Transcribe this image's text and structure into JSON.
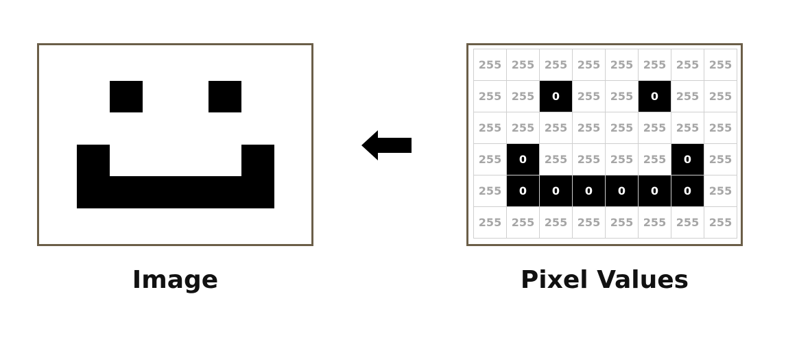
{
  "left_panel": {
    "caption": "Image"
  },
  "right_panel": {
    "caption": "Pixel Values",
    "rows": [
      [
        "255",
        "255",
        "255",
        "255",
        "255",
        "255",
        "255",
        "255"
      ],
      [
        "255",
        "255",
        "0",
        "255",
        "255",
        "0",
        "255",
        "255"
      ],
      [
        "255",
        "255",
        "255",
        "255",
        "255",
        "255",
        "255",
        "255"
      ],
      [
        "255",
        "0",
        "255",
        "255",
        "255",
        "255",
        "0",
        "255"
      ],
      [
        "255",
        "0",
        "0",
        "0",
        "0",
        "0",
        "0",
        "255"
      ],
      [
        "255",
        "255",
        "255",
        "255",
        "255",
        "255",
        "255",
        "255"
      ]
    ]
  },
  "arrow": {
    "direction": "left",
    "color": "#000000"
  },
  "colors": {
    "frame": "#6b5e48",
    "dark_pixel": "#000000",
    "light_pixel": "#ffffff",
    "light_value_text": "#a6a6a6",
    "dark_value_text": "#ffffff"
  }
}
